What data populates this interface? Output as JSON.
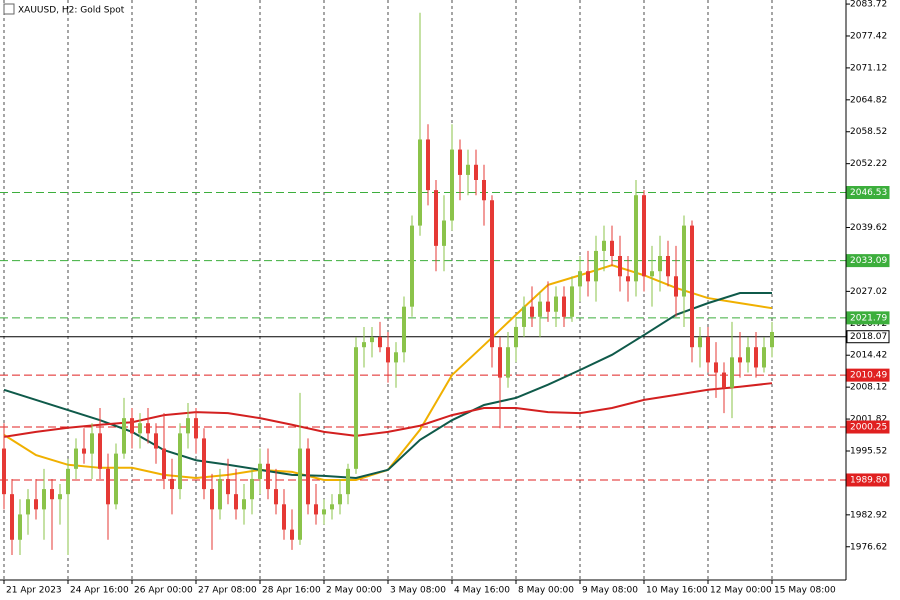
{
  "chart_data": {
    "type": "candlestick",
    "title": "XAUUSD, H2:  Gold Spot",
    "up_color": "#8bc34a",
    "down_color": "#e53935",
    "xlim": [
      -0.5,
      105.25
    ],
    "ylim": [
      1970.06,
      2084.52
    ],
    "grid": "vertical",
    "xticks": [
      {
        "value": 0,
        "label": "21 Apr 2023"
      },
      {
        "value": 8,
        "label": "24 Apr 16:00"
      },
      {
        "value": 16,
        "label": "26 Apr 00:00"
      },
      {
        "value": 24,
        "label": "27 Apr 08:00"
      },
      {
        "value": 32,
        "label": "28 Apr 16:00"
      },
      {
        "value": 40,
        "label": "2 May 00:00"
      },
      {
        "value": 48,
        "label": "3 May 08:00"
      },
      {
        "value": 56,
        "label": "4 May 16:00"
      },
      {
        "value": 64,
        "label": "8 May 00:00"
      },
      {
        "value": 72,
        "label": "9 May 08:00"
      },
      {
        "value": 80,
        "label": "10 May 16:00"
      },
      {
        "value": 88,
        "label": "12 May 00:00"
      },
      {
        "value": 96,
        "label": "15 May 08:00"
      }
    ],
    "yticks": [
      2083.72,
      2077.42,
      2071.12,
      2064.82,
      2058.52,
      2052.22,
      2039.62,
      2027.02,
      2020.72,
      2014.42,
      2008.12,
      2001.82,
      1995.52,
      1982.92,
      1976.62
    ],
    "candles": [
      [
        1996,
        2001,
        1984,
        1987
      ],
      [
        1987,
        1990,
        1975,
        1978
      ],
      [
        1978,
        1986,
        1975,
        1983
      ],
      [
        1983,
        1988,
        1979,
        1986
      ],
      [
        1986,
        1990,
        1982,
        1984
      ],
      [
        1984,
        1992,
        1978,
        1988
      ],
      [
        1988,
        1990,
        1976,
        1986
      ],
      [
        1986,
        1989,
        1981,
        1987
      ],
      [
        1987,
        1994,
        1975,
        1992
      ],
      [
        1992,
        1998,
        1990,
        1996
      ],
      [
        1996,
        2000,
        1993,
        1995
      ],
      [
        1995,
        2001,
        1990,
        1999
      ],
      [
        1999,
        2004,
        1990,
        1992
      ],
      [
        1992,
        1995,
        1978,
        1985
      ],
      [
        1985,
        1997,
        1984,
        1995
      ],
      [
        1995,
        2006,
        1994,
        2002
      ],
      [
        2002,
        2004,
        1996,
        1999
      ],
      [
        1999,
        2003,
        1996,
        2001
      ],
      [
        2001,
        2004,
        1997,
        1999
      ],
      [
        1999,
        2001,
        1993,
        1996
      ],
      [
        1996,
        2003,
        1988,
        1990
      ],
      [
        1990,
        1994,
        1983,
        1988
      ],
      [
        1988,
        2001,
        1986,
        1999
      ],
      [
        1999,
        2005,
        1996,
        2002
      ],
      [
        2002,
        2004,
        1995,
        1998
      ],
      [
        1998,
        2000,
        1986,
        1988
      ],
      [
        1988,
        1991,
        1976,
        1984
      ],
      [
        1984,
        1992,
        1982,
        1990
      ],
      [
        1990,
        1994,
        1985,
        1987
      ],
      [
        1987,
        1992,
        1982,
        1984
      ],
      [
        1984,
        1989,
        1981,
        1986
      ],
      [
        1986,
        1992,
        1983,
        1990
      ],
      [
        1990,
        1996,
        1987,
        1993
      ],
      [
        1993,
        1996,
        1986,
        1988
      ],
      [
        1988,
        1992,
        1983,
        1985
      ],
      [
        1985,
        1988,
        1978,
        1980
      ],
      [
        1980,
        1984,
        1976,
        1978
      ],
      [
        1978,
        2007,
        1977,
        1996
      ],
      [
        1996,
        1998,
        1983,
        1985
      ],
      [
        1985,
        1989,
        1981,
        1983
      ],
      [
        1983,
        1986,
        1981,
        1984
      ],
      [
        1984,
        1987,
        1982,
        1985
      ],
      [
        1985,
        1990,
        1983,
        1987
      ],
      [
        1987,
        1993,
        1985,
        1992
      ],
      [
        1992,
        2018,
        1991,
        2016
      ],
      [
        2016,
        2020,
        2012,
        2017
      ],
      [
        2017,
        2020,
        2014,
        2018
      ],
      [
        2018,
        2021,
        2015,
        2016
      ],
      [
        2016,
        2019,
        2009,
        2013
      ],
      [
        2013,
        2017,
        2008,
        2015
      ],
      [
        2015,
        2026,
        2013,
        2024
      ],
      [
        2024,
        2042,
        2022,
        2040
      ],
      [
        2040,
        2082,
        2038,
        2057
      ],
      [
        2057,
        2060,
        2044,
        2047
      ],
      [
        2047,
        2049,
        2031,
        2036
      ],
      [
        2036,
        2046,
        2031,
        2041
      ],
      [
        2041,
        2060,
        2039,
        2055
      ],
      [
        2055,
        2057,
        2045,
        2050
      ],
      [
        2050,
        2055,
        2046,
        2052
      ],
      [
        2052,
        2055,
        2046,
        2049
      ],
      [
        2049,
        2052,
        2040,
        2045
      ],
      [
        2045,
        2046,
        2012,
        2016
      ],
      [
        2016,
        2018,
        2000,
        2010
      ],
      [
        2010,
        2019,
        2008,
        2016
      ],
      [
        2016,
        2022,
        2013,
        2020
      ],
      [
        2020,
        2026,
        2018,
        2024
      ],
      [
        2024,
        2028,
        2020,
        2022
      ],
      [
        2022,
        2027,
        2018,
        2025
      ],
      [
        2025,
        2029,
        2021,
        2023
      ],
      [
        2023,
        2028,
        2020,
        2026
      ],
      [
        2026,
        2028,
        2020,
        2022
      ],
      [
        2022,
        2030,
        2021,
        2028
      ],
      [
        2028,
        2034,
        2025,
        2031
      ],
      [
        2031,
        2035,
        2026,
        2029
      ],
      [
        2029,
        2038,
        2025,
        2035
      ],
      [
        2035,
        2040,
        2031,
        2037
      ],
      [
        2037,
        2040,
        2032,
        2034
      ],
      [
        2034,
        2038,
        2027,
        2030
      ],
      [
        2030,
        2034,
        2025,
        2029
      ],
      [
        2029,
        2049,
        2026,
        2046
      ],
      [
        2046,
        2047,
        2027,
        2030
      ],
      [
        2030,
        2036,
        2024,
        2031
      ],
      [
        2031,
        2038,
        2027,
        2034
      ],
      [
        2034,
        2037,
        2028,
        2030
      ],
      [
        2030,
        2036,
        2022,
        2026
      ],
      [
        2026,
        2042,
        2020,
        2040
      ],
      [
        2040,
        2041,
        2013,
        2016
      ],
      [
        2016,
        2020,
        2012,
        2018
      ],
      [
        2018,
        2020,
        2011,
        2013
      ],
      [
        2013,
        2017,
        2006,
        2011
      ],
      [
        2011,
        2013,
        2003,
        2008
      ],
      [
        2008,
        2021,
        2002,
        2014
      ],
      [
        2014,
        2019,
        2010,
        2013
      ],
      [
        2013,
        2018,
        2011,
        2016
      ],
      [
        2016,
        2019,
        2010,
        2012
      ],
      [
        2012,
        2018,
        2011,
        2016
      ],
      [
        2016,
        2021,
        2014,
        2019
      ]
    ],
    "x": [
      0,
      4,
      8,
      12,
      16,
      20,
      24,
      28,
      32,
      36,
      40,
      44,
      48,
      52,
      56,
      60,
      64,
      68,
      72,
      76,
      80,
      84,
      88,
      92,
      96
    ],
    "series": [
      {
        "color": "#f0b000",
        "values": [
          1998.7,
          1994.7,
          1992.8,
          1992.2,
          1992.2,
          1990.8,
          1990.2,
          1990.8,
          1991.8,
          1991.4,
          1989.8,
          1989.8,
          1991.8,
          1999.7,
          2010.5,
          2016.4,
          2022.4,
          2028.3,
          2030.2,
          2032.2,
          2030.2,
          2027.7,
          2025.7,
          2024.7,
          2023.7
        ]
      },
      {
        "color": "#0f5a4a",
        "values": [
          2007.6,
          2005.6,
          2003.6,
          2001.6,
          1999.3,
          1995.7,
          1993.7,
          1992.8,
          1991.8,
          1990.8,
          1990.6,
          1990.2,
          1991.8,
          1997.7,
          2001.6,
          2004.6,
          2006.0,
          2008.6,
          2011.5,
          2014.5,
          2018.4,
          2022.4,
          2024.7,
          2026.7,
          2026.7
        ]
      },
      {
        "color": "#d32020",
        "values": [
          1998.3,
          1999.3,
          2000.1,
          2000.7,
          2001.2,
          2002.6,
          2003.2,
          2003.0,
          2002.0,
          2000.7,
          1999.3,
          1998.5,
          1999.3,
          2000.5,
          2002.6,
          2004.0,
          2004.0,
          2003.2,
          2003.0,
          2004.0,
          2005.6,
          2006.6,
          2007.6,
          2008.2,
          2008.9
        ]
      }
    ],
    "levels": [
      {
        "value": 2046.53,
        "color": "#3cae3c",
        "style": "dashed"
      },
      {
        "value": 2033.09,
        "color": "#3cae3c",
        "style": "dashed"
      },
      {
        "value": 2021.79,
        "color": "#3cae3c",
        "style": "dashed"
      },
      {
        "value": 2018.07,
        "color": "#000000",
        "style": "solid"
      },
      {
        "value": 2010.49,
        "color": "#e02020",
        "style": "dashed"
      },
      {
        "value": 2000.25,
        "color": "#e02020",
        "style": "dashed"
      },
      {
        "value": {
          "value": 1989.8,
          "label": "1989.80"
        },
        "color": "#e02020",
        "style": "dashed"
      }
    ]
  }
}
